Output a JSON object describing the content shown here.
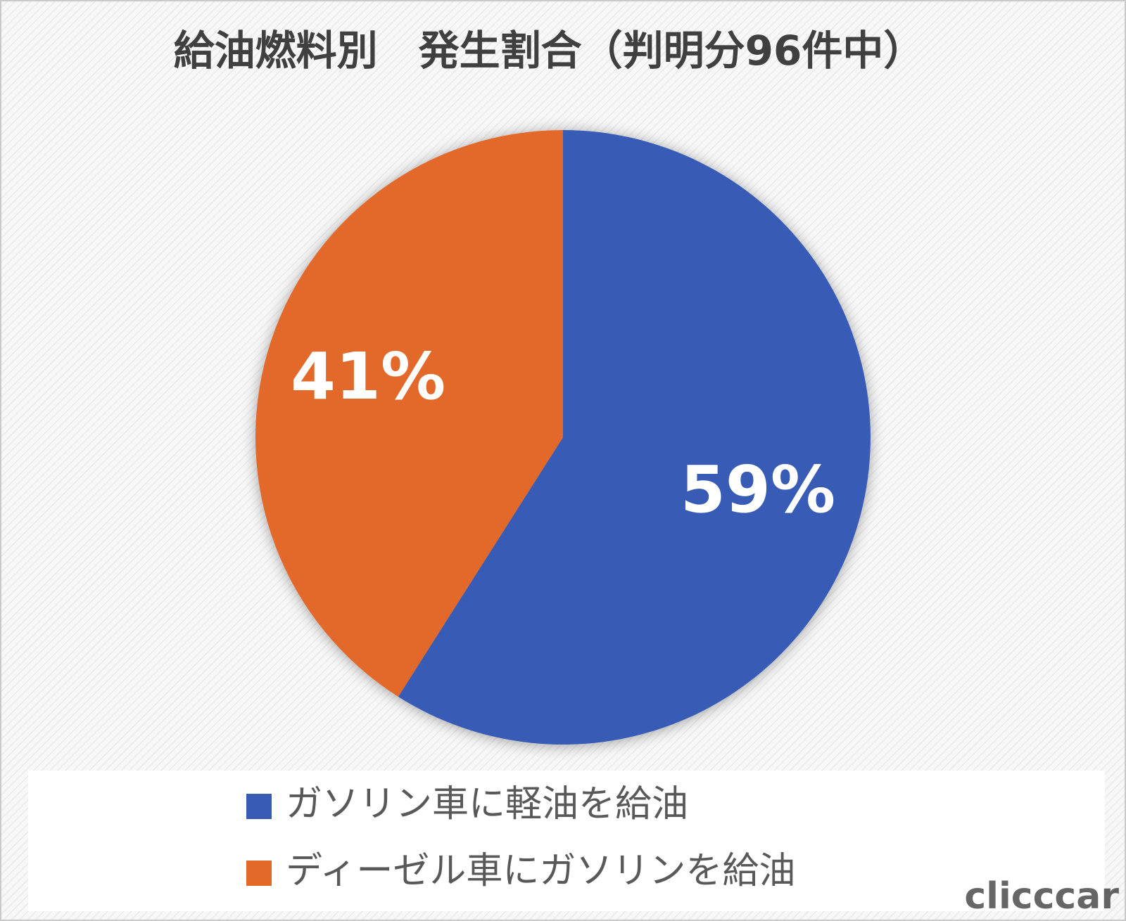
{
  "chart_data": {
    "type": "pie",
    "title": "給油燃料別　発生割合（判明分96件中）",
    "categories": [
      "ガソリン車に軽油を給油",
      "ディーゼル車にガソリンを給油"
    ],
    "values": [
      59,
      41
    ],
    "value_labels": [
      "59%",
      "41%"
    ],
    "colors": [
      "#385cb6",
      "#e2692a"
    ],
    "start_angle": 0,
    "direction": "clockwise",
    "legend": "bottom"
  },
  "watermark": "clicccar"
}
